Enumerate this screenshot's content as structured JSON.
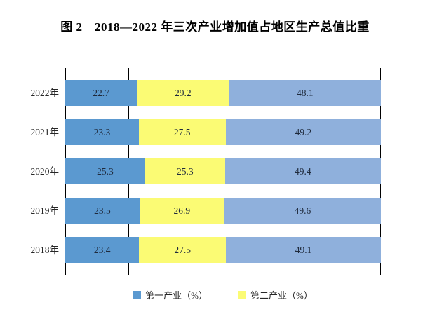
{
  "figure": {
    "title": "图 2　2018—2022 年三次产业增加值占地区生产总值比重"
  },
  "chart_data": {
    "type": "bar",
    "variant": "horizontal-stacked",
    "title": "图 2　2018—2022 年三次产业增加值占地区生产总值比重",
    "categories": [
      "2022年",
      "2021年",
      "2020年",
      "2019年",
      "2018年"
    ],
    "series": [
      {
        "name": "第一产业（%）",
        "color": "#5B99D0",
        "values": [
          22.7,
          23.3,
          25.3,
          23.5,
          23.4
        ]
      },
      {
        "name": "第二产业（%）",
        "color": "#FBFB74",
        "values": [
          29.2,
          27.5,
          25.3,
          26.9,
          27.5
        ]
      },
      {
        "name": "",
        "color": "#8FB0DC",
        "values": [
          48.1,
          49.2,
          49.4,
          49.6,
          49.1
        ]
      }
    ],
    "legend": [
      {
        "label": "第一产业（%）",
        "color": "#5B99D0"
      },
      {
        "label": "第二产业（%）",
        "color": "#FBFB74"
      }
    ],
    "xlabel": "",
    "ylabel": "",
    "xlim": [
      0,
      100
    ],
    "gridline_interval": 20,
    "grid": true,
    "legend_position": "bottom-center",
    "value_labels": true
  },
  "colors": {
    "series1": "#5B99D0",
    "series2": "#FBFB74",
    "series3": "#8FB0DC",
    "gridline": "#000000",
    "bar_label_text": "#1F2A3C",
    "axis_label_text": "#262626",
    "title_text": "#000000",
    "background": "#FFFFFF"
  }
}
